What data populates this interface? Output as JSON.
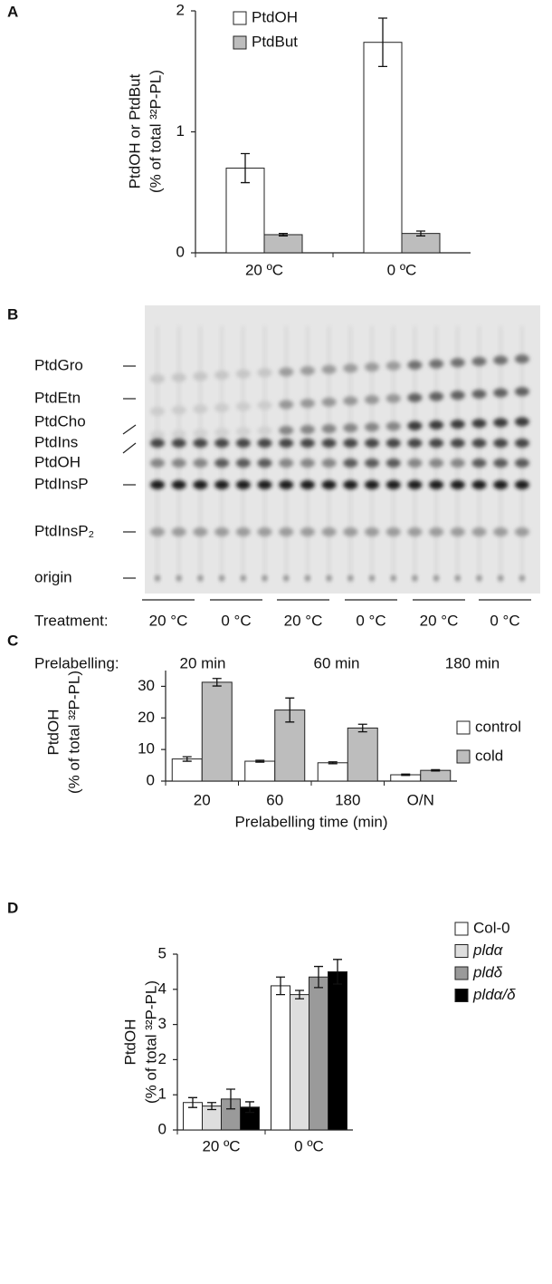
{
  "chart_data": [
    {
      "type": "bar",
      "panel_label": "A",
      "ylabel": [
        "PtdOH or PtdBut",
        "(% of total ³²P-PL)"
      ],
      "categories": [
        "20 ºC",
        "0 ºC"
      ],
      "series": [
        {
          "name": "PtdOH",
          "color": "#ffffff",
          "values": [
            0.7,
            1.74
          ],
          "errors": [
            0.12,
            0.2
          ]
        },
        {
          "name": "PtdBut",
          "color": "#bdbdbd",
          "values": [
            0.15,
            0.16
          ],
          "errors": [
            0.01,
            0.02
          ]
        }
      ],
      "ylim": [
        0,
        2
      ],
      "yticks": [
        0,
        1,
        2
      ],
      "legend": "top-left"
    },
    {
      "type": "bar",
      "panel_label": "C",
      "ylabel": [
        "PtdOH",
        "(% of total ³²P-PL)"
      ],
      "xlabel": "Prelabelling time (min)",
      "categories": [
        "20",
        "60",
        "180",
        "O/N"
      ],
      "series": [
        {
          "name": "control",
          "color": "#ffffff",
          "values": [
            7,
            6.3,
            5.8,
            2
          ],
          "errors": [
            0.7,
            0.3,
            0.3,
            0.2
          ]
        },
        {
          "name": "cold",
          "color": "#bdbdbd",
          "values": [
            31.3,
            22.5,
            16.8,
            3.4
          ],
          "errors": [
            1.2,
            3.8,
            1.2,
            0.2
          ]
        }
      ],
      "ylim": [
        0,
        35
      ],
      "yticks": [
        0,
        10,
        20,
        30
      ],
      "legend": "top-right"
    },
    {
      "type": "bar",
      "panel_label": "D",
      "ylabel": [
        "PtdOH",
        "(% of total ³²P-PL)"
      ],
      "categories": [
        "20 ºC",
        "0 ºC"
      ],
      "series": [
        {
          "name": "Col-0",
          "color": "#ffffff",
          "values": [
            0.78,
            4.1
          ],
          "errors": [
            0.14,
            0.25
          ]
        },
        {
          "name": "pldα",
          "color": "#dedede",
          "italic": true,
          "values": [
            0.68,
            3.85
          ],
          "errors": [
            0.1,
            0.12
          ]
        },
        {
          "name": "pldδ",
          "color": "#9a9a9a",
          "italic": true,
          "values": [
            0.88,
            4.35
          ],
          "errors": [
            0.28,
            0.3
          ]
        },
        {
          "name": "pldα/δ",
          "color": "#000000",
          "italic": true,
          "values": [
            0.65,
            4.5
          ],
          "errors": [
            0.15,
            0.35
          ]
        }
      ],
      "ylim": [
        0,
        5
      ],
      "yticks": [
        0,
        1,
        2,
        3,
        4,
        5
      ],
      "legend": "right"
    }
  ],
  "blot": {
    "panel_label": "B",
    "lipids": [
      "PtdGro",
      "PtdEtn",
      "PtdCho",
      "PtdIns",
      "PtdOH",
      "PtdInsP",
      "PtdInsP₂",
      "origin"
    ],
    "treatment_label": "Treatment:",
    "treatments": [
      "20 °C",
      "0 °C",
      "20 °C",
      "0 °C",
      "20 °C",
      "0 °C"
    ],
    "prelabelling_label": "Prelabelling:",
    "prelabelling": [
      "20 min",
      "60 min",
      "180 min"
    ]
  }
}
